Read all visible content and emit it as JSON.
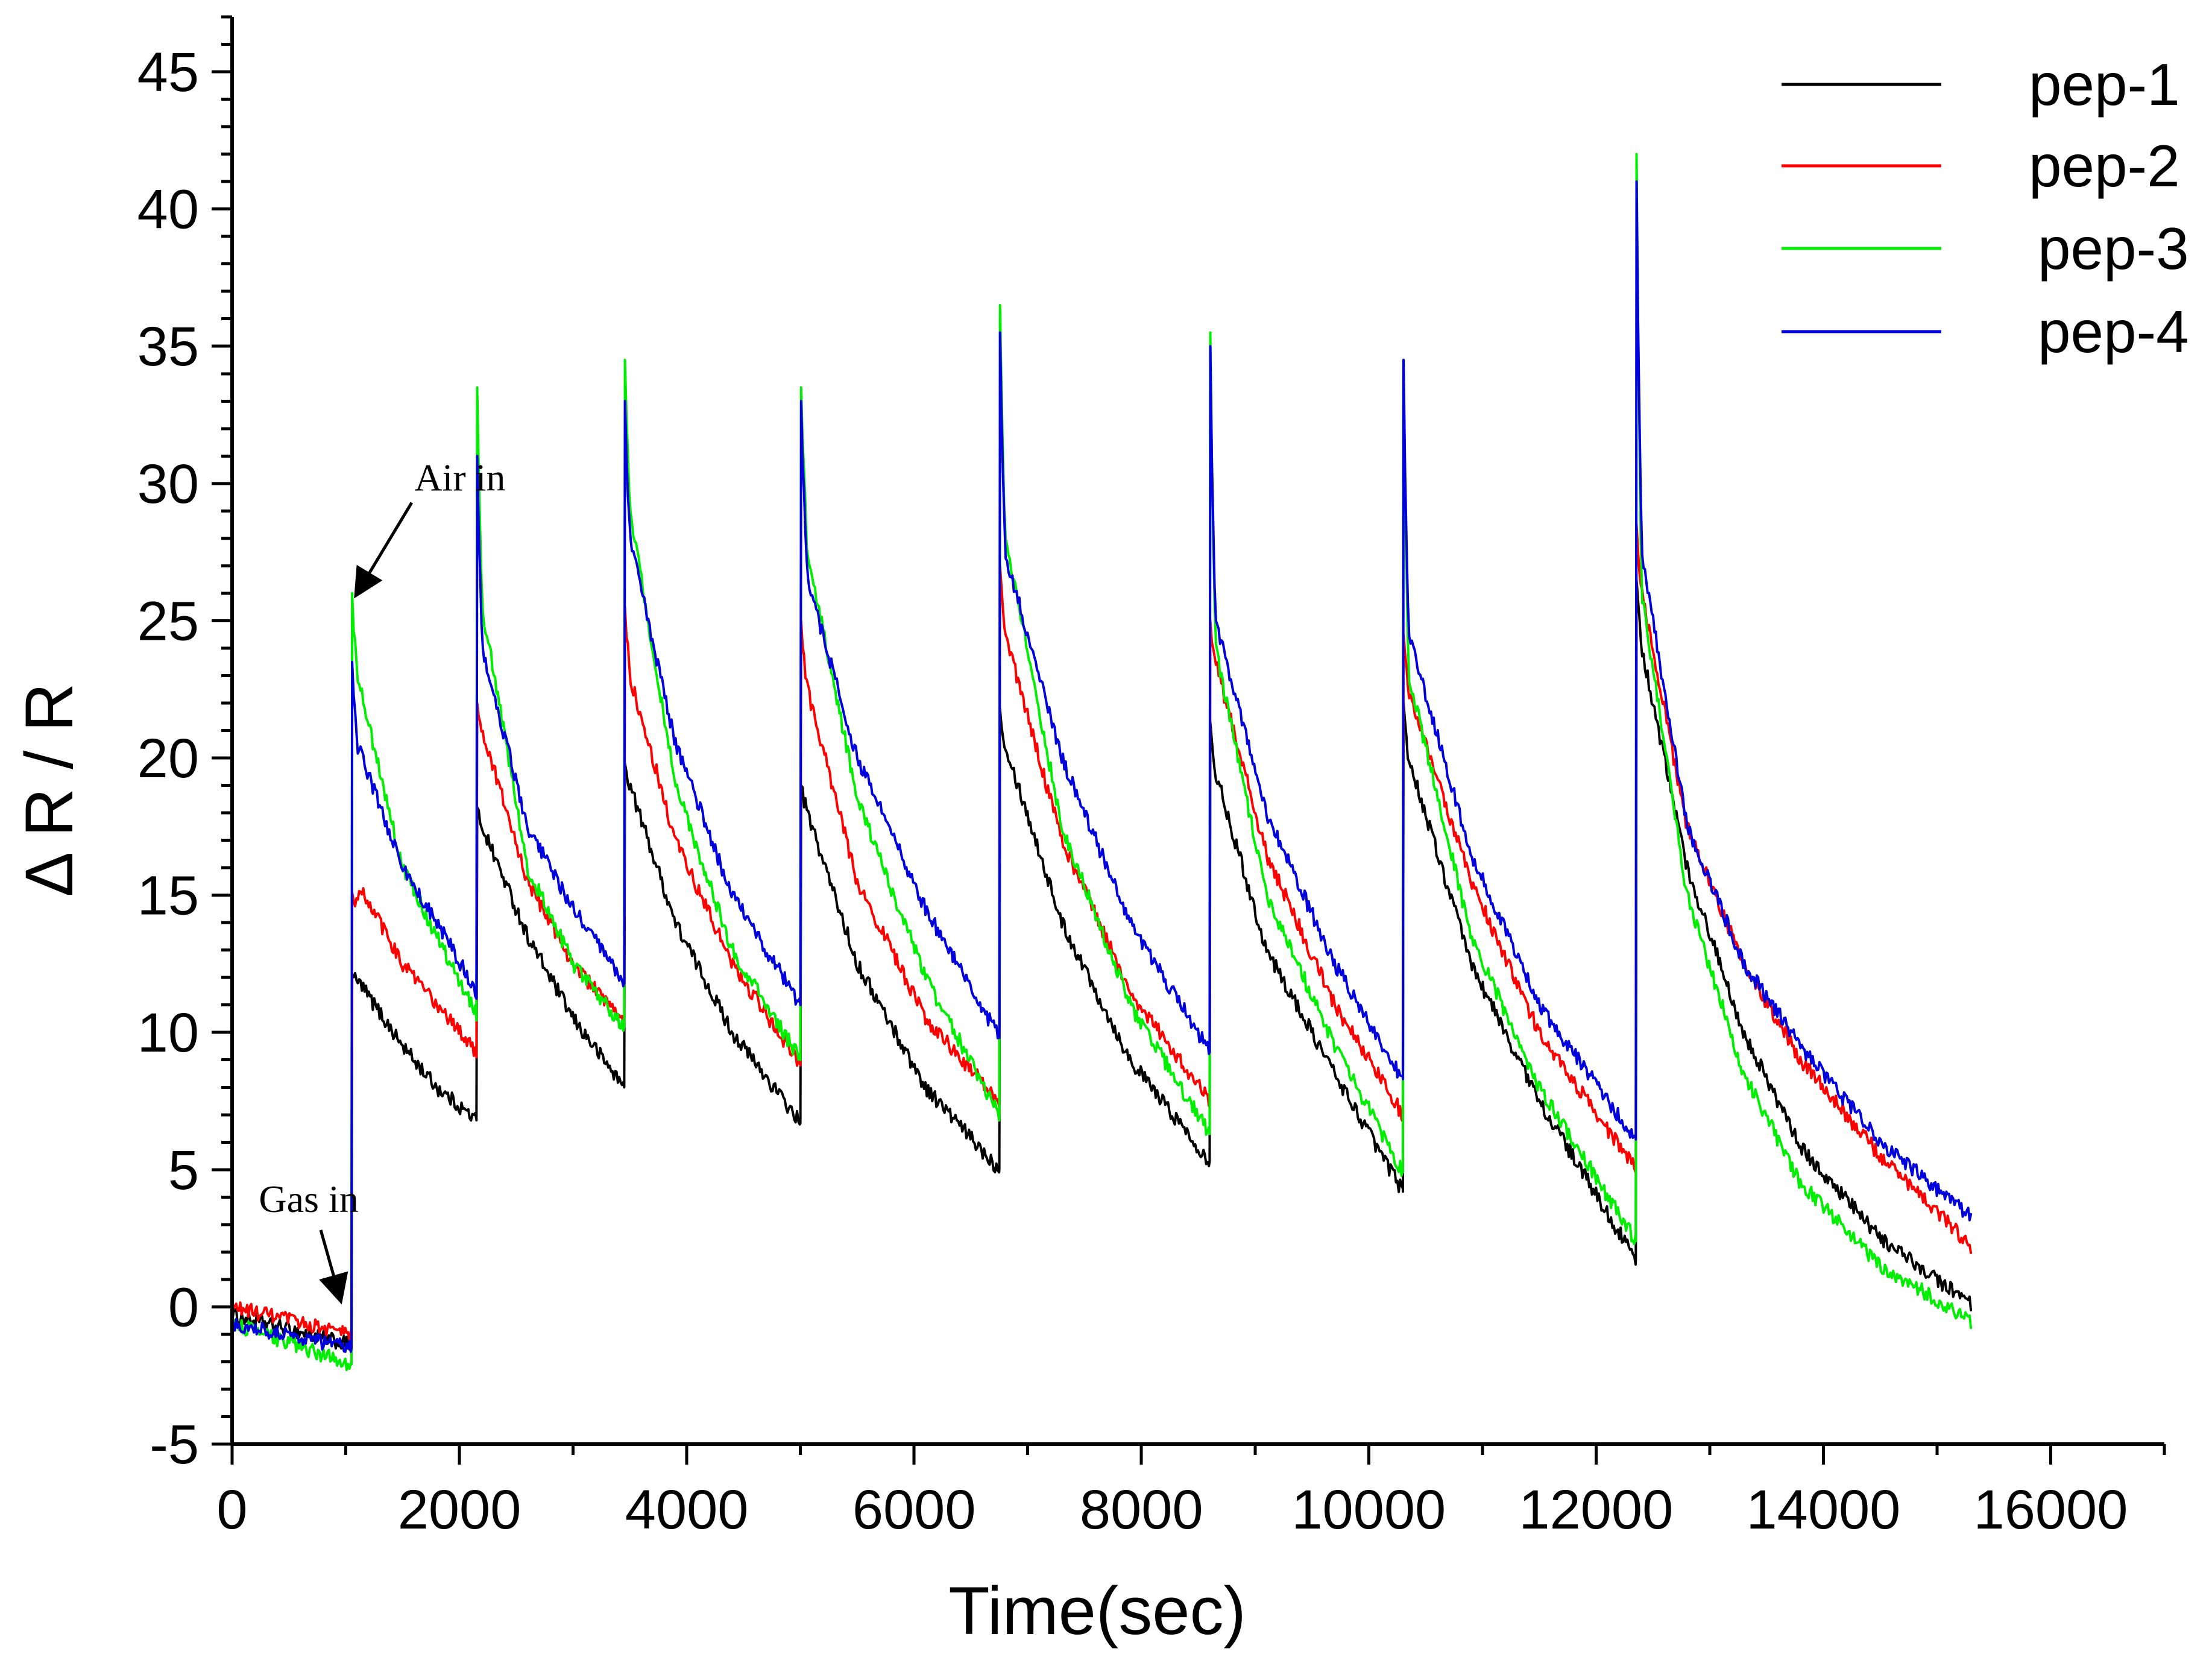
{
  "chart_data": {
    "type": "line",
    "title": "",
    "xlabel": "Time(sec)",
    "ylabel": "Δ R / R",
    "xlim": [
      0,
      17000
    ],
    "ylim": [
      -5,
      47
    ],
    "x_major_ticks": [
      0,
      2000,
      4000,
      6000,
      8000,
      10000,
      12000,
      14000,
      16000
    ],
    "x_tick_labels": [
      "0",
      "2000",
      "4000",
      "6000",
      "8000",
      "10000",
      "12000",
      "14000",
      "16000"
    ],
    "y_major_ticks": [
      -5,
      0,
      5,
      10,
      15,
      20,
      25,
      30,
      35,
      40,
      45
    ],
    "y_tick_labels": [
      "-5",
      "0",
      "5",
      "10",
      "15",
      "20",
      "25",
      "30",
      "35",
      "40",
      "45"
    ],
    "grid": false,
    "legend_position": "top-right",
    "gas_in_times": [
      1050,
      2150,
      3450,
      5000,
      6750,
      8600,
      10300,
      12350
    ],
    "series": [
      {
        "name": "pep-1",
        "color": "#000000",
        "cycles": [
          {
            "t": [
              0,
              1050
            ],
            "v": [
              -0.3,
              -1.4
            ]
          },
          {
            "t": [
              1050,
              1120,
              1500,
              1800,
              2150
            ],
            "v": [
              12.0,
              11.8,
              9.5,
              8.0,
              6.8
            ],
            "spike": 12.0
          },
          {
            "t": [
              2150,
              2200,
              2600,
              3000,
              3450
            ],
            "v": [
              18.2,
              17.5,
              13.5,
              10.5,
              8.0
            ],
            "spike": 18.2
          },
          {
            "t": [
              3450,
              3500,
              3900,
              4400,
              5000
            ],
            "v": [
              19.8,
              19.0,
              14.0,
              10.0,
              6.7
            ],
            "spike": 19.8
          },
          {
            "t": [
              5000,
              5060,
              5500,
              6100,
              6750
            ],
            "v": [
              19.0,
              18.0,
              12.5,
              8.0,
              5.0
            ],
            "spike": 19.0
          },
          {
            "t": [
              6750,
              6800,
              7300,
              7900,
              8600
            ],
            "v": [
              21.8,
              20.5,
              14.0,
              9.0,
              5.3
            ],
            "spike": 21.8
          },
          {
            "t": [
              8600,
              8650,
              9100,
              9700,
              10300
            ],
            "v": [
              21.3,
              19.5,
              13.0,
              8.5,
              4.2
            ],
            "spike": 21.3
          },
          {
            "t": [
              10300,
              10350,
              10900,
              11500,
              12350
            ],
            "v": [
              22.0,
              20.0,
              12.5,
              7.5,
              1.7
            ],
            "spike": 22.0
          },
          {
            "t": [
              12350,
              12400,
              12800,
              13300,
              13800,
              14500,
              15300
            ],
            "v": [
              26.5,
              24.0,
              16.0,
              10.0,
              5.8,
              2.5,
              0.1
            ],
            "spike": 26.5
          }
        ]
      },
      {
        "name": "pep-2",
        "color": "#ff0000",
        "cycles": [
          {
            "t": [
              0,
              1050
            ],
            "v": [
              0.0,
              -1.0
            ]
          },
          {
            "t": [
              1050,
              1150,
              1500,
              1800,
              2150
            ],
            "v": [
              14.5,
              15.1,
              12.5,
              11.0,
              9.3
            ],
            "spike": 15.1
          },
          {
            "t": [
              2150,
              2200,
              2600,
              3000,
              3450
            ],
            "v": [
              22.0,
              21.0,
              15.5,
              12.5,
              10.3
            ],
            "spike": 22.0
          },
          {
            "t": [
              3450,
              3500,
              3900,
              4400,
              5000
            ],
            "v": [
              25.5,
              23.0,
              17.0,
              12.5,
              8.8
            ],
            "spike": 25.5
          },
          {
            "t": [
              5000,
              5060,
              5500,
              6100,
              6750
            ],
            "v": [
              25.0,
              22.5,
              15.5,
              10.5,
              7.5
            ],
            "spike": 25.0
          },
          {
            "t": [
              6750,
              6800,
              7300,
              7900,
              8600
            ],
            "v": [
              27.0,
              24.5,
              17.0,
              11.5,
              7.5
            ],
            "spike": 27.0
          },
          {
            "t": [
              8600,
              8650,
              9100,
              9700,
              10300
            ],
            "v": [
              25.0,
              23.5,
              16.5,
              11.0,
              7.0
            ],
            "spike": 25.0
          },
          {
            "t": [
              10300,
              10350,
              10900,
              11500,
              12350
            ],
            "v": [
              24.5,
              22.5,
              15.5,
              10.0,
              5.0
            ],
            "spike": 24.5
          },
          {
            "t": [
              12350,
              12400,
              12800,
              13300,
              13800,
              14500,
              15300
            ],
            "v": [
              28.5,
              26.0,
              17.5,
              12.5,
              9.0,
              5.5,
              2.2
            ],
            "spike": 28.5
          }
        ]
      },
      {
        "name": "pep-3",
        "color": "#00ee00",
        "cycles": [
          {
            "t": [
              0,
              1050
            ],
            "v": [
              -0.6,
              -2.1
            ]
          },
          {
            "t": [
              1050,
              1100,
              1500,
              1800,
              2150
            ],
            "v": [
              26.0,
              23.0,
              16.0,
              13.5,
              10.7
            ],
            "spike": 26.0
          },
          {
            "t": [
              2150,
              2200,
              2600,
              3000,
              3450
            ],
            "v": [
              33.5,
              25.5,
              16.0,
              12.5,
              10.2
            ],
            "spike": 33.5
          },
          {
            "t": [
              3450,
              3500,
              3900,
              4400,
              5000
            ],
            "v": [
              34.5,
              29.0,
              19.0,
              13.0,
              9.0
            ],
            "spike": 34.5
          },
          {
            "t": [
              5000,
              5060,
              5500,
              6100,
              6750
            ],
            "v": [
              33.5,
              27.5,
              18.5,
              12.0,
              7.0
            ],
            "spike": 33.5
          },
          {
            "t": [
              6750,
              6800,
              7300,
              7900,
              8600
            ],
            "v": [
              36.5,
              28.0,
              17.5,
              11.0,
              6.3
            ],
            "spike": 36.5
          },
          {
            "t": [
              8600,
              8650,
              9100,
              9700,
              10300
            ],
            "v": [
              35.5,
              24.0,
              15.0,
              9.5,
              4.9
            ],
            "spike": 35.5
          },
          {
            "t": [
              10300,
              10350,
              10900,
              11500,
              12350
            ],
            "v": [
              34.5,
              23.0,
              13.5,
              8.0,
              2.4
            ],
            "spike": 34.5
          },
          {
            "t": [
              12350,
              12400,
              12800,
              13300,
              13800,
              14500,
              15300
            ],
            "v": [
              42.0,
              26.0,
              15.0,
              8.5,
              4.5,
              1.5,
              -0.5
            ],
            "spike": 42.0
          }
        ]
      },
      {
        "name": "pep-4",
        "color": "#0000dd",
        "cycles": [
          {
            "t": [
              0,
              1050
            ],
            "v": [
              -0.6,
              -1.5
            ]
          },
          {
            "t": [
              1050,
              1100,
              1500,
              1800,
              2150
            ],
            "v": [
              23.5,
              20.5,
              16.0,
              14.0,
              11.5
            ],
            "spike": 23.5
          },
          {
            "t": [
              2150,
              2200,
              2600,
              3000,
              3450
            ],
            "v": [
              31.0,
              24.0,
              17.5,
              14.5,
              11.8
            ],
            "spike": 31.0
          },
          {
            "t": [
              3450,
              3500,
              3900,
              4400,
              5000
            ],
            "v": [
              33.0,
              28.0,
              20.5,
              15.0,
              11.0
            ],
            "spike": 33.0
          },
          {
            "t": [
              5000,
              5060,
              5500,
              6100,
              6750
            ],
            "v": [
              33.0,
              26.5,
              20.0,
              14.5,
              9.8
            ],
            "spike": 33.0
          },
          {
            "t": [
              6750,
              6800,
              7300,
              7900,
              8600
            ],
            "v": [
              35.5,
              27.5,
              20.0,
              14.0,
              9.3
            ],
            "spike": 35.5
          },
          {
            "t": [
              8600,
              8650,
              9100,
              9700,
              10300
            ],
            "v": [
              35.0,
              25.0,
              18.0,
              12.5,
              8.3
            ],
            "spike": 35.0
          },
          {
            "t": [
              10300,
              10350,
              10900,
              11500,
              12350
            ],
            "v": [
              34.5,
              24.5,
              16.5,
              11.0,
              6.1
            ],
            "spike": 34.5
          },
          {
            "t": [
              12350,
              12400,
              12800,
              13300,
              13800,
              14500,
              15300
            ],
            "v": [
              41.0,
              27.5,
              17.5,
              12.5,
              9.5,
              6.0,
              3.3
            ],
            "spike": 41.0
          }
        ]
      }
    ],
    "annotations": [
      {
        "label": "Air in",
        "point_x": 1100,
        "point_y": 26.0,
        "arrow_from_x": 1580,
        "arrow_from_y": 29.3
      },
      {
        "label": "Gas in",
        "point_x": 950,
        "point_y": 0.3,
        "arrow_from_x": 780,
        "arrow_from_y": 2.8
      }
    ]
  }
}
